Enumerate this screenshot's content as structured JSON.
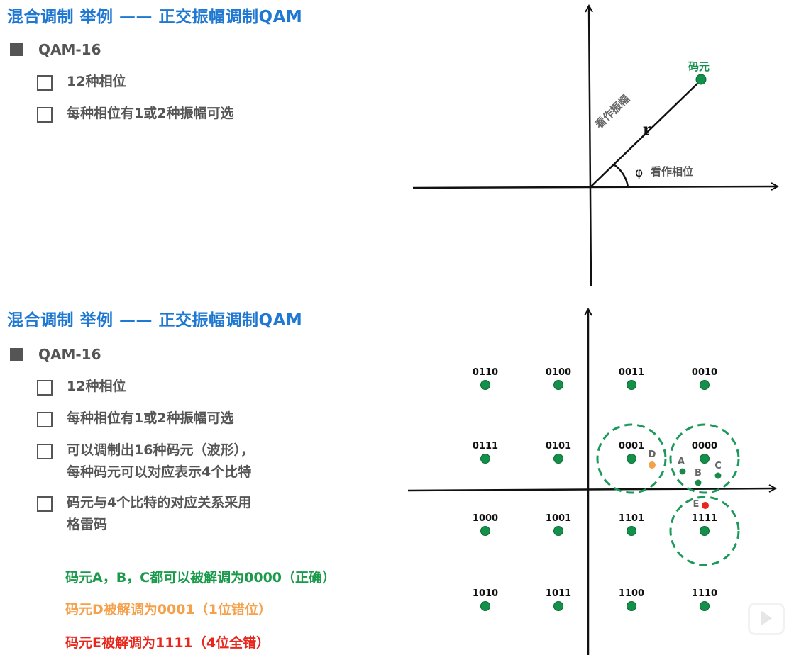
{
  "slide1": {
    "title": "混合调制 举例 —— 正交振幅调制QAM",
    "heading": "QAM-16",
    "bullets": [
      "12种相位",
      "每种相位有1或2种振幅可选"
    ],
    "diagram": {
      "symbol_label": "码元",
      "amplitude_label": "看作振幅",
      "r_label": "r",
      "phi_label": "φ",
      "phase_label": "看作相位"
    }
  },
  "slide2": {
    "title": "混合调制 举例 —— 正交振幅调制QAM",
    "heading": "QAM-16",
    "bullets": [
      [
        "12种相位"
      ],
      [
        "每种相位有1或2种振幅可选"
      ],
      [
        "可以调制出16种码元（波形），",
        "每种码元可以对应表示4个比特"
      ],
      [
        "码元与4个比特的对应关系采用",
        "格雷码"
      ]
    ],
    "notes": [
      {
        "text": "码元A，B，C都可以被解调为0000（正确）",
        "color": "#1a9a4a"
      },
      {
        "text": "码元D被解调为0001（1位错位）",
        "color": "#f5a04a"
      },
      {
        "text": "码元E被解调为1111（4位全错）",
        "color": "#e8261c"
      }
    ],
    "constellation": {
      "rows": [
        [
          "0110",
          "0100",
          "0011",
          "0010"
        ],
        [
          "0111",
          "0101",
          "0001",
          "0000"
        ],
        [
          "1000",
          "1001",
          "1101",
          "1111"
        ],
        [
          "1010",
          "1011",
          "1100",
          "1110"
        ]
      ],
      "received": [
        {
          "label": "A",
          "color": "#1a8a4a"
        },
        {
          "label": "B",
          "color": "#1a8a4a"
        },
        {
          "label": "C",
          "color": "#1a8a4a"
        },
        {
          "label": "D",
          "color": "#f5a04a"
        },
        {
          "label": "E",
          "color": "#e8261c"
        }
      ]
    }
  },
  "colors": {
    "title": "#1f78d1",
    "point": "#13904a",
    "decision_circle": "#1a9a5a"
  },
  "overlay": {
    "icon": "play-icon"
  }
}
